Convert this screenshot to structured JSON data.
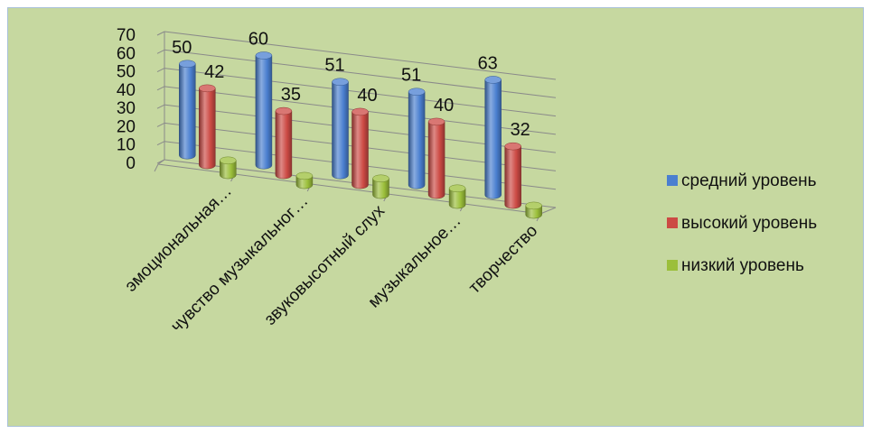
{
  "chart_data": {
    "type": "bar",
    "style": "3d-cylinder",
    "categories": [
      "эмоциональная…",
      "чувство музыкальног…",
      "звуковысотный слух",
      "музыкальное…",
      "творчество"
    ],
    "series": [
      {
        "name": "средний уровень",
        "color": "#4a7fd0",
        "values": [
          50,
          60,
          51,
          51,
          63
        ]
      },
      {
        "name": "высокий уровень",
        "color": "#cc4a44",
        "values": [
          42,
          35,
          40,
          40,
          32
        ]
      },
      {
        "name": "низкий уровень",
        "color": "#9bbf3a",
        "values": [
          8,
          5,
          9,
          9,
          5
        ]
      }
    ],
    "data_labels": [
      [
        "50",
        "60",
        "51",
        "51",
        "63"
      ],
      [
        "42",
        "35",
        "40",
        "40",
        "32"
      ]
    ],
    "yticks": [
      "0",
      "10",
      "20",
      "30",
      "40",
      "50",
      "60",
      "70"
    ],
    "ylim": [
      0,
      70
    ],
    "grid": true,
    "legend_position": "right",
    "background_color": "#c6d8a0"
  }
}
